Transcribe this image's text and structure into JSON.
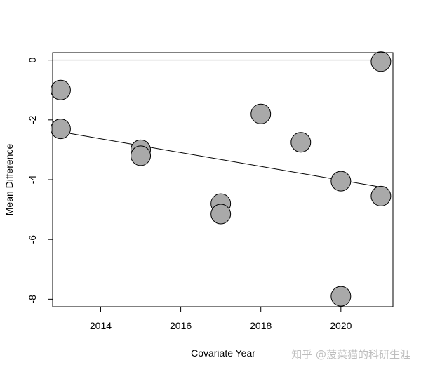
{
  "chart_data": {
    "type": "scatter",
    "xlabel": "Covariate Year",
    "ylabel": "Mean Difference",
    "xlim": [
      2012.8,
      2021.3
    ],
    "ylim": [
      -8.25,
      0.25
    ],
    "x_ticks": [
      2014,
      2016,
      2018,
      2020
    ],
    "x_tick_labels": [
      "2014",
      "2016",
      "2018",
      "2020"
    ],
    "y_ticks": [
      0,
      -2,
      -4,
      -6,
      -8
    ],
    "y_tick_labels": [
      "0",
      "-2",
      "-4",
      "-6",
      "-8"
    ],
    "reference_line_y": 0,
    "points": [
      {
        "x": 2013,
        "y": -1.0
      },
      {
        "x": 2013,
        "y": -2.3
      },
      {
        "x": 2015,
        "y": -3.0
      },
      {
        "x": 2015,
        "y": -3.2
      },
      {
        "x": 2017,
        "y": -4.8
      },
      {
        "x": 2017,
        "y": -5.15
      },
      {
        "x": 2018,
        "y": -1.8
      },
      {
        "x": 2019,
        "y": -2.75
      },
      {
        "x": 2020,
        "y": -4.05
      },
      {
        "x": 2020,
        "y": -7.9
      },
      {
        "x": 2021,
        "y": -0.05
      },
      {
        "x": 2021,
        "y": -4.55
      }
    ],
    "regression_line": {
      "x": [
        2013,
        2021
      ],
      "y": [
        -2.4,
        -4.25
      ]
    },
    "colors": {
      "point_fill": "#a9a9a9",
      "point_stroke": "#000000",
      "reference_line": "#d3d3d3",
      "regression_line": "#000000"
    }
  },
  "watermark": "知乎 @菠菜猫的科研生涯"
}
